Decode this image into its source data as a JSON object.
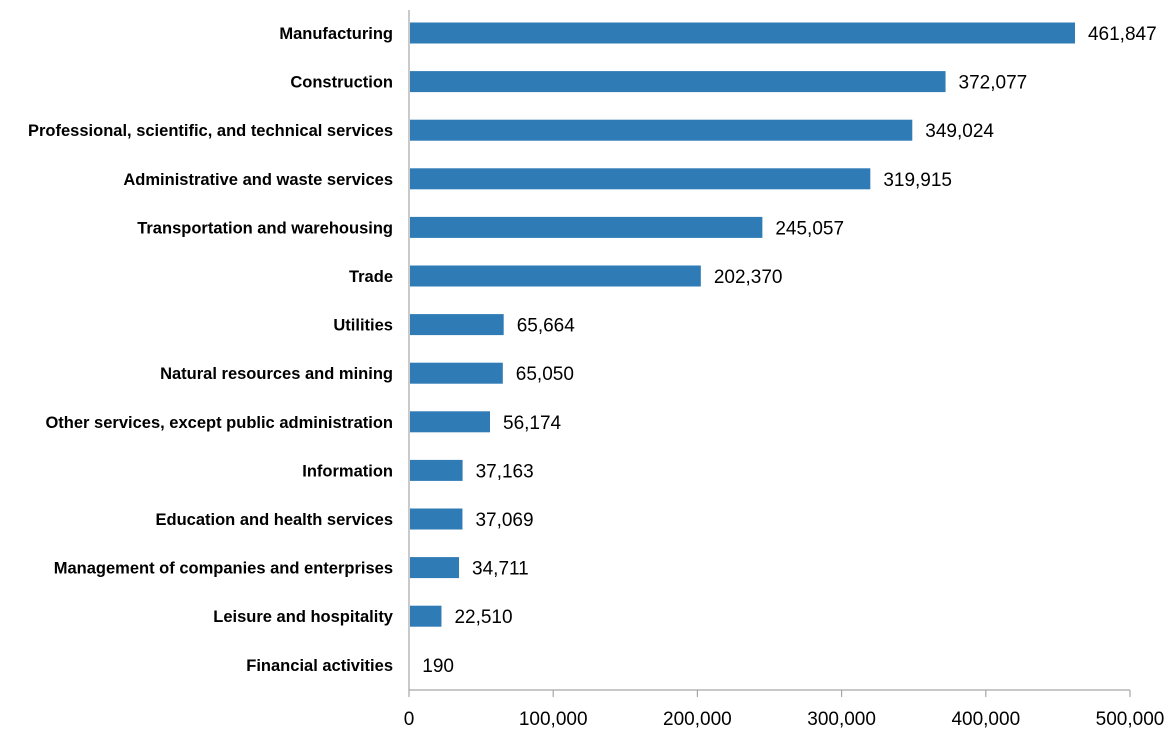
{
  "chart_data": {
    "type": "bar",
    "orientation": "horizontal",
    "categories": [
      "Manufacturing",
      "Construction",
      "Professional, scientific, and technical services",
      "Administrative and waste services",
      "Transportation and warehousing",
      "Trade",
      "Utilities",
      "Natural resources and mining",
      "Other services, except public administration",
      "Information",
      "Education and health services",
      "Management of companies and enterprises",
      "Leisure and hospitality",
      "Financial activities"
    ],
    "values": [
      461847,
      372077,
      349024,
      319915,
      245057,
      202370,
      65664,
      65050,
      56174,
      37163,
      37069,
      34711,
      22510,
      190
    ],
    "value_labels": [
      "461,847",
      "372,077",
      "349,024",
      "319,915",
      "245,057",
      "202,370",
      "65,664",
      "65,050",
      "56,174",
      "37,163",
      "37,069",
      "34,711",
      "22,510",
      "190"
    ],
    "xlim": [
      0,
      500000
    ],
    "xticks": [
      0,
      100000,
      200000,
      300000,
      400000,
      500000
    ],
    "xtick_labels": [
      "0",
      "100,000",
      "200,000",
      "300,000",
      "400,000",
      "500,000"
    ],
    "title": "",
    "xlabel": "",
    "ylabel": "",
    "grid": false,
    "legend": "none",
    "bar_color": "#2e7bb6",
    "axis_color": "#a6a6a6"
  }
}
